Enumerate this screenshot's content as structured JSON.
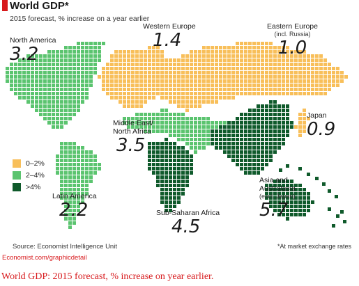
{
  "title": "World GDP*",
  "subtitle": "2015 forecast, % increase on a year earlier",
  "colors": {
    "low": "#f8bf5a",
    "mid": "#5bc46f",
    "high": "#0f5a2b",
    "accent": "#d7191c"
  },
  "legend": [
    {
      "label": "0–2%",
      "color_key": "low"
    },
    {
      "label": "2–4%",
      "color_key": "mid"
    },
    {
      "label": ">4%",
      "color_key": "high"
    }
  ],
  "regions": [
    {
      "name": "North America",
      "value": "3.2",
      "category": "mid"
    },
    {
      "name": "Western Europe",
      "value": "1.4",
      "category": "low"
    },
    {
      "name": "Eastern Europe",
      "note": "(incl. Russia)",
      "value": "1.0",
      "category": "low"
    },
    {
      "name": "Middle East/",
      "name2": "North Africa",
      "value": "3.5",
      "category": "mid"
    },
    {
      "name": "Japan",
      "value": "0.9",
      "category": "low"
    },
    {
      "name": "Latin America",
      "value": "2.2",
      "category": "mid"
    },
    {
      "name": "Sub-Saharan Africa",
      "value": "4.5",
      "category": "high"
    },
    {
      "name": "Asia and",
      "name2": "Australasia",
      "note": "(excl. Japan)",
      "value": "5.7",
      "category": "high"
    }
  ],
  "source": "Source: Economist Intelligence Unit",
  "footnote": "*At market exchange rates",
  "credit": "Economist.com/graphicdetail",
  "caption": "World GDP: 2015 forecast, % increase on year earlier."
}
